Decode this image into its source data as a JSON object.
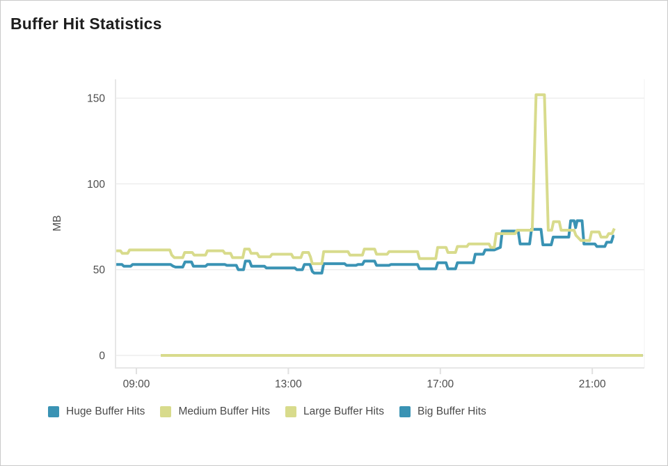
{
  "window": {
    "title": "Buffer Hit Statistics"
  },
  "chart_data": {
    "type": "line",
    "title": "Buffer Hit Statistics",
    "xlabel": "",
    "ylabel": "MB",
    "unit": "MB",
    "grid": "horizontal",
    "legend_position": "bottom",
    "x_ticks": [
      "09:00",
      "13:00",
      "17:00",
      "21:00"
    ],
    "x_tick_hours": [
      9,
      13,
      17,
      21
    ],
    "y_ticks": [
      0,
      50,
      100,
      150
    ],
    "x_range_hours": [
      8.45,
      22.37
    ],
    "y_range": [
      -7.3,
      161
    ],
    "z_order": [
      0,
      3,
      2,
      1
    ],
    "series": [
      {
        "name": "Huge Buffer Hits",
        "color": "#3a93b4",
        "points": [
          [
            8.47,
            53
          ],
          [
            8.62,
            53
          ],
          [
            8.67,
            52
          ],
          [
            8.85,
            52
          ],
          [
            8.9,
            53
          ],
          [
            9.9,
            53
          ],
          [
            9.97,
            52
          ],
          [
            10.03,
            51.5
          ],
          [
            10.22,
            51.5
          ],
          [
            10.28,
            54.5
          ],
          [
            10.45,
            54.5
          ],
          [
            10.5,
            52
          ],
          [
            10.82,
            52
          ],
          [
            10.87,
            53
          ],
          [
            11.33,
            53
          ],
          [
            11.38,
            52.5
          ],
          [
            11.63,
            52.5
          ],
          [
            11.68,
            50
          ],
          [
            11.82,
            50
          ],
          [
            11.87,
            55
          ],
          [
            11.98,
            55
          ],
          [
            12.03,
            52
          ],
          [
            12.37,
            52
          ],
          [
            12.42,
            51
          ],
          [
            13.17,
            51
          ],
          [
            13.22,
            50
          ],
          [
            13.37,
            50
          ],
          [
            13.42,
            53
          ],
          [
            13.57,
            53
          ],
          [
            13.63,
            49
          ],
          [
            13.68,
            48
          ],
          [
            13.88,
            48
          ],
          [
            13.93,
            53.5
          ],
          [
            14.48,
            53.5
          ],
          [
            14.53,
            52.5
          ],
          [
            14.78,
            52.5
          ],
          [
            14.83,
            53
          ],
          [
            14.95,
            53
          ],
          [
            15.0,
            55
          ],
          [
            15.27,
            55
          ],
          [
            15.32,
            52.5
          ],
          [
            15.65,
            52.5
          ],
          [
            15.7,
            53
          ],
          [
            16.4,
            53
          ],
          [
            16.45,
            50.5
          ],
          [
            16.88,
            50.5
          ],
          [
            16.93,
            54
          ],
          [
            17.15,
            54
          ],
          [
            17.2,
            50.5
          ],
          [
            17.4,
            50.5
          ],
          [
            17.45,
            54
          ],
          [
            17.87,
            54
          ],
          [
            17.92,
            59
          ],
          [
            18.13,
            59
          ],
          [
            18.18,
            61.5
          ],
          [
            18.42,
            61.5
          ],
          [
            18.58,
            63
          ],
          [
            18.63,
            72.5
          ],
          [
            19.05,
            72.5
          ],
          [
            19.1,
            65
          ],
          [
            19.35,
            65
          ],
          [
            19.4,
            73.5
          ],
          [
            19.65,
            73.5
          ],
          [
            19.7,
            64.5
          ],
          [
            19.92,
            64.5
          ],
          [
            19.97,
            69
          ],
          [
            20.38,
            69
          ],
          [
            20.43,
            78.5
          ],
          [
            20.52,
            78.5
          ],
          [
            20.56,
            74.5
          ],
          [
            20.6,
            78.5
          ],
          [
            20.73,
            78.5
          ],
          [
            20.78,
            65
          ],
          [
            21.07,
            65
          ],
          [
            21.12,
            63.5
          ],
          [
            21.33,
            63.5
          ],
          [
            21.38,
            66
          ],
          [
            21.5,
            66
          ],
          [
            21.55,
            69.5
          ],
          [
            21.58,
            69.5
          ]
        ]
      },
      {
        "name": "Medium Buffer Hits",
        "color": "#d8db8c",
        "points": [
          [
            8.47,
            61
          ],
          [
            8.58,
            61
          ],
          [
            8.63,
            59.5
          ],
          [
            8.77,
            59.5
          ],
          [
            8.82,
            61.5
          ],
          [
            9.88,
            61.5
          ],
          [
            9.93,
            58.5
          ],
          [
            10.0,
            57
          ],
          [
            10.22,
            57
          ],
          [
            10.27,
            60
          ],
          [
            10.47,
            60
          ],
          [
            10.52,
            58.5
          ],
          [
            10.82,
            58.5
          ],
          [
            10.87,
            61
          ],
          [
            11.28,
            61
          ],
          [
            11.33,
            59.5
          ],
          [
            11.48,
            59.5
          ],
          [
            11.53,
            57
          ],
          [
            11.8,
            57
          ],
          [
            11.85,
            62
          ],
          [
            11.97,
            62
          ],
          [
            12.02,
            59.5
          ],
          [
            12.18,
            59.5
          ],
          [
            12.23,
            57.5
          ],
          [
            12.52,
            57.5
          ],
          [
            12.57,
            59
          ],
          [
            13.08,
            59
          ],
          [
            13.13,
            57
          ],
          [
            13.33,
            57
          ],
          [
            13.38,
            60
          ],
          [
            13.53,
            60
          ],
          [
            13.58,
            57.5
          ],
          [
            13.63,
            53.5
          ],
          [
            13.88,
            53.5
          ],
          [
            13.93,
            60.5
          ],
          [
            14.57,
            60.5
          ],
          [
            14.62,
            58.5
          ],
          [
            14.95,
            58.5
          ],
          [
            15.0,
            62
          ],
          [
            15.27,
            62
          ],
          [
            15.32,
            59
          ],
          [
            15.6,
            59
          ],
          [
            15.65,
            60.5
          ],
          [
            16.4,
            60.5
          ],
          [
            16.45,
            56.5
          ],
          [
            16.88,
            56.5
          ],
          [
            16.93,
            63
          ],
          [
            17.15,
            63
          ],
          [
            17.2,
            60
          ],
          [
            17.4,
            60
          ],
          [
            17.45,
            63.5
          ],
          [
            17.7,
            63.5
          ],
          [
            17.75,
            65
          ],
          [
            18.28,
            65
          ],
          [
            18.33,
            63
          ],
          [
            18.42,
            63
          ],
          [
            18.47,
            71
          ],
          [
            18.97,
            71
          ],
          [
            19.02,
            73
          ],
          [
            19.42,
            73
          ],
          [
            19.52,
            152
          ],
          [
            19.74,
            152
          ],
          [
            19.84,
            73
          ],
          [
            19.93,
            73
          ],
          [
            19.98,
            78
          ],
          [
            20.13,
            78
          ],
          [
            20.18,
            73
          ],
          [
            20.52,
            73
          ],
          [
            20.57,
            70
          ],
          [
            20.7,
            67
          ],
          [
            20.93,
            67
          ],
          [
            20.98,
            72
          ],
          [
            21.18,
            72
          ],
          [
            21.23,
            69
          ],
          [
            21.38,
            69
          ],
          [
            21.43,
            71
          ],
          [
            21.52,
            71
          ],
          [
            21.58,
            74
          ]
        ]
      },
      {
        "name": "Large Buffer Hits",
        "color": "#d8db8c",
        "points": [
          [
            9.64,
            0
          ],
          [
            22.33,
            0
          ]
        ]
      },
      {
        "name": "Big Buffer Hits",
        "color": "#3a93b4",
        "points": [
          [
            9.64,
            0
          ],
          [
            22.33,
            0
          ]
        ]
      }
    ]
  },
  "legend": {
    "items": [
      {
        "label": "Huge Buffer Hits",
        "color": "#3a93b4"
      },
      {
        "label": "Medium Buffer Hits",
        "color": "#d8db8c"
      },
      {
        "label": "Large Buffer Hits",
        "color": "#d8db8c"
      },
      {
        "label": "Big Buffer Hits",
        "color": "#3a93b4"
      }
    ]
  },
  "colors": {
    "teal": "#3a93b4",
    "yellow_green": "#d8db8c",
    "gridline": "#ededed",
    "axis": "#e7e7e7",
    "tick_text": "#4d4d4d"
  }
}
